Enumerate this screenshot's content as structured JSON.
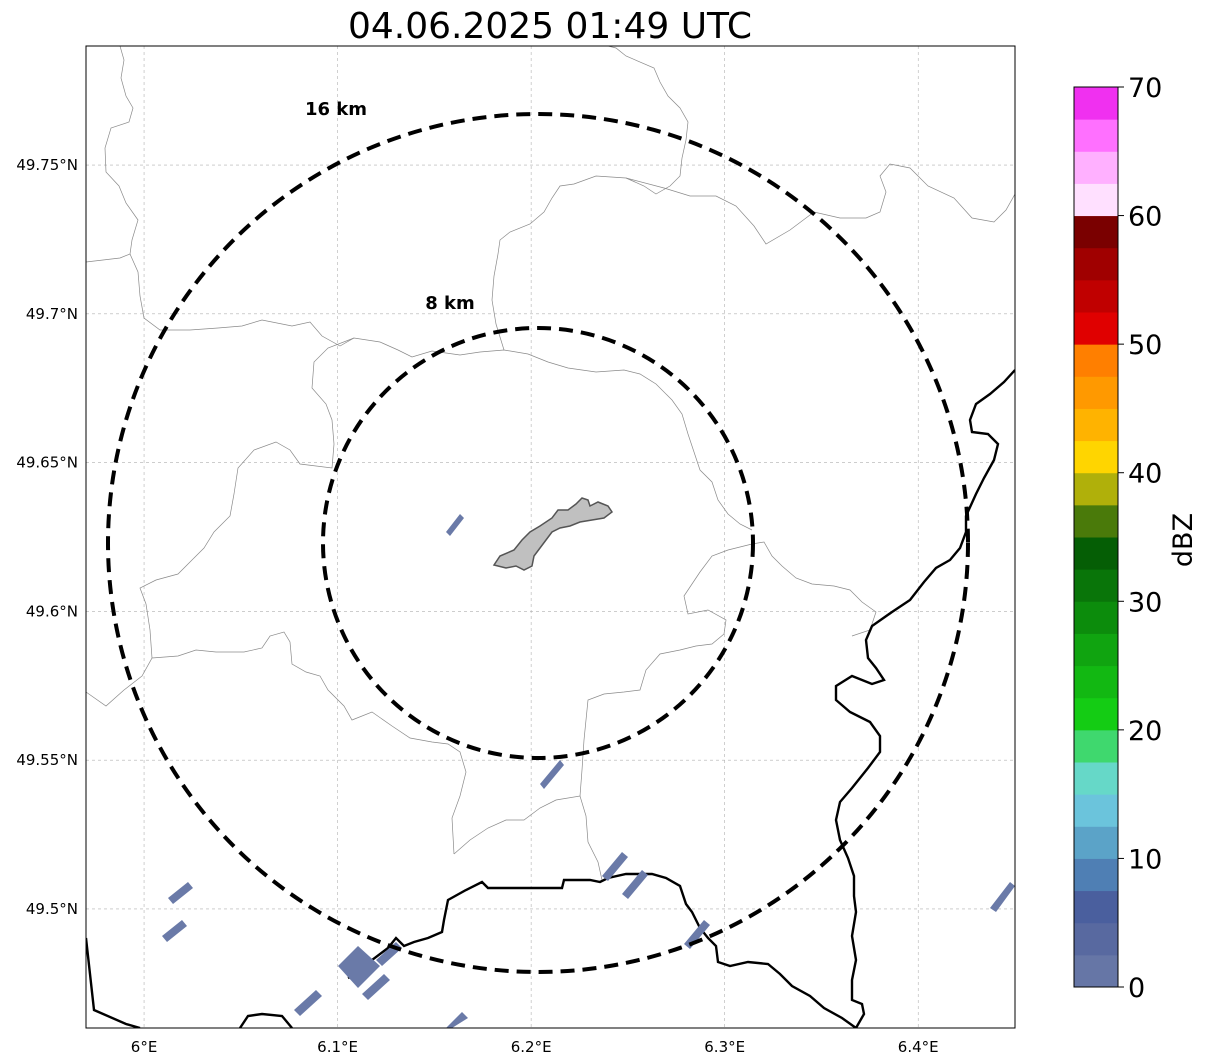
{
  "title": "04.06.2025 01:49 UTC",
  "map": {
    "lon_range": [
      5.97,
      6.45
    ],
    "lat_range": [
      49.46,
      49.79
    ],
    "center": {
      "lon": 6.2,
      "lat": 49.623
    },
    "x_ticks": [
      {
        "value": 6.0,
        "label": "6°E"
      },
      {
        "value": 6.1,
        "label": "6.1°E"
      },
      {
        "value": 6.2,
        "label": "6.2°E"
      },
      {
        "value": 6.3,
        "label": "6.3°E"
      },
      {
        "value": 6.4,
        "label": "6.4°E"
      }
    ],
    "y_ticks": [
      {
        "value": 49.5,
        "label": "49.5°N"
      },
      {
        "value": 49.55,
        "label": "49.55°N"
      },
      {
        "value": 49.6,
        "label": "49.6°N"
      },
      {
        "value": 49.65,
        "label": "49.65°N"
      },
      {
        "value": 49.7,
        "label": "49.7°N"
      },
      {
        "value": 49.75,
        "label": "49.75°N"
      }
    ],
    "grid": true,
    "rings": [
      {
        "radius_km": 8,
        "label": "8 km"
      },
      {
        "radius_km": 16,
        "label": "16 km"
      }
    ],
    "colors": {
      "ring": "#000000",
      "echo": "#6a7aa8",
      "city_fill": "#c0c0c0",
      "grid": "#b0b0b0",
      "border": "#000000"
    }
  },
  "colorbar": {
    "label": "dBZ",
    "min": 0,
    "max": 70,
    "ticks": [
      {
        "value": 0,
        "label": "0"
      },
      {
        "value": 10,
        "label": "10"
      },
      {
        "value": 20,
        "label": "20"
      },
      {
        "value": 30,
        "label": "30"
      },
      {
        "value": 40,
        "label": "40"
      },
      {
        "value": 50,
        "label": "50"
      },
      {
        "value": 60,
        "label": "60"
      },
      {
        "value": 70,
        "label": "70"
      }
    ],
    "colors": [
      "#6676a6",
      "#5869a0",
      "#4a5f9e",
      "#4f7fb4",
      "#5ba3c8",
      "#6bc4dc",
      "#66d8c8",
      "#3fd86e",
      "#14cc14",
      "#12b812",
      "#10a410",
      "#0c8c0c",
      "#097509",
      "#055e05",
      "#4a7a0a",
      "#b0b00a",
      "#ffd500",
      "#ffb300",
      "#ff9900",
      "#ff7f00",
      "#e00000",
      "#c00000",
      "#a00000",
      "#7a0000",
      "#ffe0ff",
      "#ffb0ff",
      "#ff70ff",
      "#f030f0"
    ]
  }
}
